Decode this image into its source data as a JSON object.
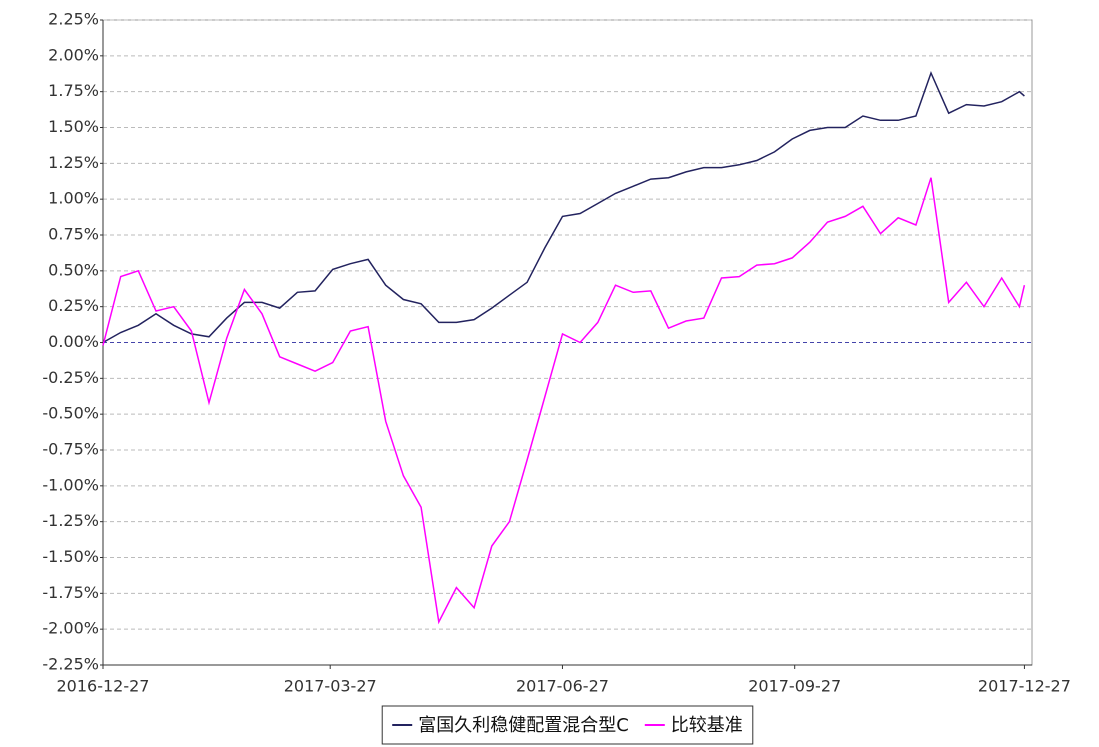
{
  "chart_data": {
    "type": "line",
    "x": [
      "2016-12-27",
      "2017-01-03",
      "2017-01-10",
      "2017-01-17",
      "2017-01-24",
      "2017-01-31",
      "2017-02-07",
      "2017-02-14",
      "2017-02-21",
      "2017-02-28",
      "2017-03-07",
      "2017-03-14",
      "2017-03-21",
      "2017-03-28",
      "2017-04-04",
      "2017-04-11",
      "2017-04-18",
      "2017-04-25",
      "2017-05-02",
      "2017-05-09",
      "2017-05-16",
      "2017-05-23",
      "2017-05-30",
      "2017-06-06",
      "2017-06-13",
      "2017-06-20",
      "2017-06-27",
      "2017-07-04",
      "2017-07-11",
      "2017-07-18",
      "2017-07-25",
      "2017-08-01",
      "2017-08-08",
      "2017-08-15",
      "2017-08-22",
      "2017-08-29",
      "2017-09-05",
      "2017-09-12",
      "2017-09-19",
      "2017-09-26",
      "2017-10-03",
      "2017-10-10",
      "2017-10-17",
      "2017-10-24",
      "2017-10-31",
      "2017-11-07",
      "2017-11-14",
      "2017-11-20",
      "2017-11-27",
      "2017-12-04",
      "2017-12-11",
      "2017-12-18",
      "2017-12-25",
      "2017-12-27"
    ],
    "series": [
      {
        "name": "富国久利稳健配置混合型C",
        "color": "#23235f",
        "values": [
          0.0,
          0.07,
          0.12,
          0.2,
          0.12,
          0.06,
          0.04,
          0.17,
          0.28,
          0.28,
          0.24,
          0.35,
          0.36,
          0.51,
          0.55,
          0.58,
          0.4,
          0.3,
          0.27,
          0.14,
          0.14,
          0.16,
          0.24,
          0.33,
          0.42,
          0.66,
          0.88,
          0.9,
          0.97,
          1.04,
          1.09,
          1.14,
          1.15,
          1.19,
          1.22,
          1.22,
          1.24,
          1.27,
          1.33,
          1.42,
          1.48,
          1.5,
          1.5,
          1.58,
          1.55,
          1.55,
          1.58,
          1.88,
          1.6,
          1.66,
          1.65,
          1.68,
          1.75,
          1.72
        ]
      },
      {
        "name": "比较基准",
        "color": "#ff00ff",
        "values": [
          -0.02,
          0.46,
          0.5,
          0.22,
          0.25,
          0.08,
          -0.42,
          0.03,
          0.37,
          0.2,
          -0.1,
          -0.15,
          -0.2,
          -0.14,
          0.08,
          0.11,
          -0.55,
          -0.93,
          -1.15,
          -1.95,
          -1.71,
          -1.85,
          -1.42,
          -1.25,
          -0.82,
          -0.38,
          0.06,
          0.0,
          0.14,
          0.4,
          0.35,
          0.36,
          0.1,
          0.15,
          0.17,
          0.45,
          0.46,
          0.54,
          0.55,
          0.59,
          0.7,
          0.84,
          0.88,
          0.95,
          0.76,
          0.87,
          0.82,
          1.15,
          0.28,
          0.42,
          0.25,
          0.45,
          0.25,
          0.4
        ]
      }
    ],
    "xlim": [
      "2016-12-27",
      "2017-12-30"
    ],
    "xticks": [
      "2016-12-27",
      "2017-03-27",
      "2017-06-27",
      "2017-09-27",
      "2017-12-27"
    ],
    "ylim": [
      -2.25,
      2.25
    ],
    "yticks": [
      {
        "value": -2.25,
        "label": "-2.25%"
      },
      {
        "value": -2.0,
        "label": "-2.00%"
      },
      {
        "value": -1.75,
        "label": "-1.75%"
      },
      {
        "value": -1.5,
        "label": "-1.50%"
      },
      {
        "value": -1.25,
        "label": "-1.25%"
      },
      {
        "value": -1.0,
        "label": "-1.00%"
      },
      {
        "value": -0.75,
        "label": "-0.75%"
      },
      {
        "value": -0.5,
        "label": "-0.50%"
      },
      {
        "value": -0.25,
        "label": "-0.25%"
      },
      {
        "value": 0,
        "label": "0.00%"
      },
      {
        "value": 0.25,
        "label": "0.25%"
      },
      {
        "value": 0.5,
        "label": "0.50%"
      },
      {
        "value": 0.75,
        "label": "0.75%"
      },
      {
        "value": 1.0,
        "label": "1.00%"
      },
      {
        "value": 1.25,
        "label": "1.25%"
      },
      {
        "value": 1.5,
        "label": "1.50%"
      },
      {
        "value": 1.75,
        "label": "1.75%"
      },
      {
        "value": 2.0,
        "label": "2.00%"
      },
      {
        "value": 2.25,
        "label": "2.25%"
      }
    ],
    "grid": true,
    "legend": "bottom"
  }
}
